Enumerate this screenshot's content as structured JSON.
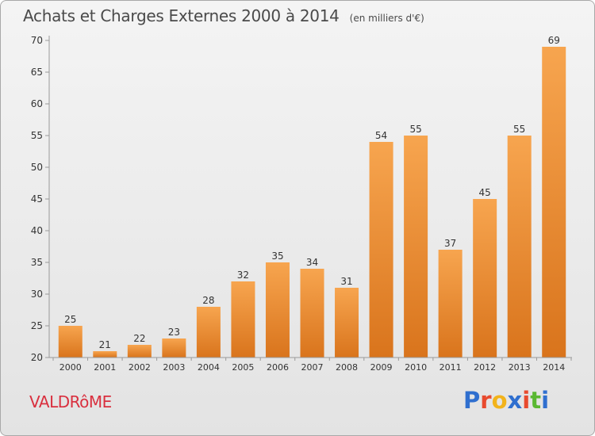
{
  "header": {
    "title": "Achats et Charges Externes 2000 à 2014",
    "subtitle": "(en milliers d'€)"
  },
  "footer": {
    "commune": "VALDRôME",
    "logo_text": "Proxiti",
    "logo_colors": [
      "#2f6fcf",
      "#e84a2e",
      "#f2b31b",
      "#2f6fcf",
      "#e84a2e",
      "#5ab832",
      "#2f6fcf"
    ]
  },
  "chart_data": {
    "type": "bar",
    "title": "Achats et Charges Externes 2000 à 2014",
    "subtitle": "(en milliers d'€)",
    "xlabel": "",
    "ylabel": "",
    "categories": [
      "2000",
      "2001",
      "2002",
      "2003",
      "2004",
      "2005",
      "2006",
      "2007",
      "2008",
      "2009",
      "2010",
      "2011",
      "2012",
      "2013",
      "2014"
    ],
    "values": [
      25,
      21,
      22,
      23,
      28,
      32,
      35,
      34,
      31,
      54,
      55,
      37,
      45,
      55,
      69
    ],
    "ylim": [
      20,
      70
    ],
    "yticks": [
      20,
      25,
      30,
      35,
      40,
      45,
      50,
      55,
      60,
      65,
      70
    ],
    "grid": false,
    "legend": "none",
    "bar_color_top": "#f7a54f",
    "bar_color_bottom": "#d9741c"
  }
}
